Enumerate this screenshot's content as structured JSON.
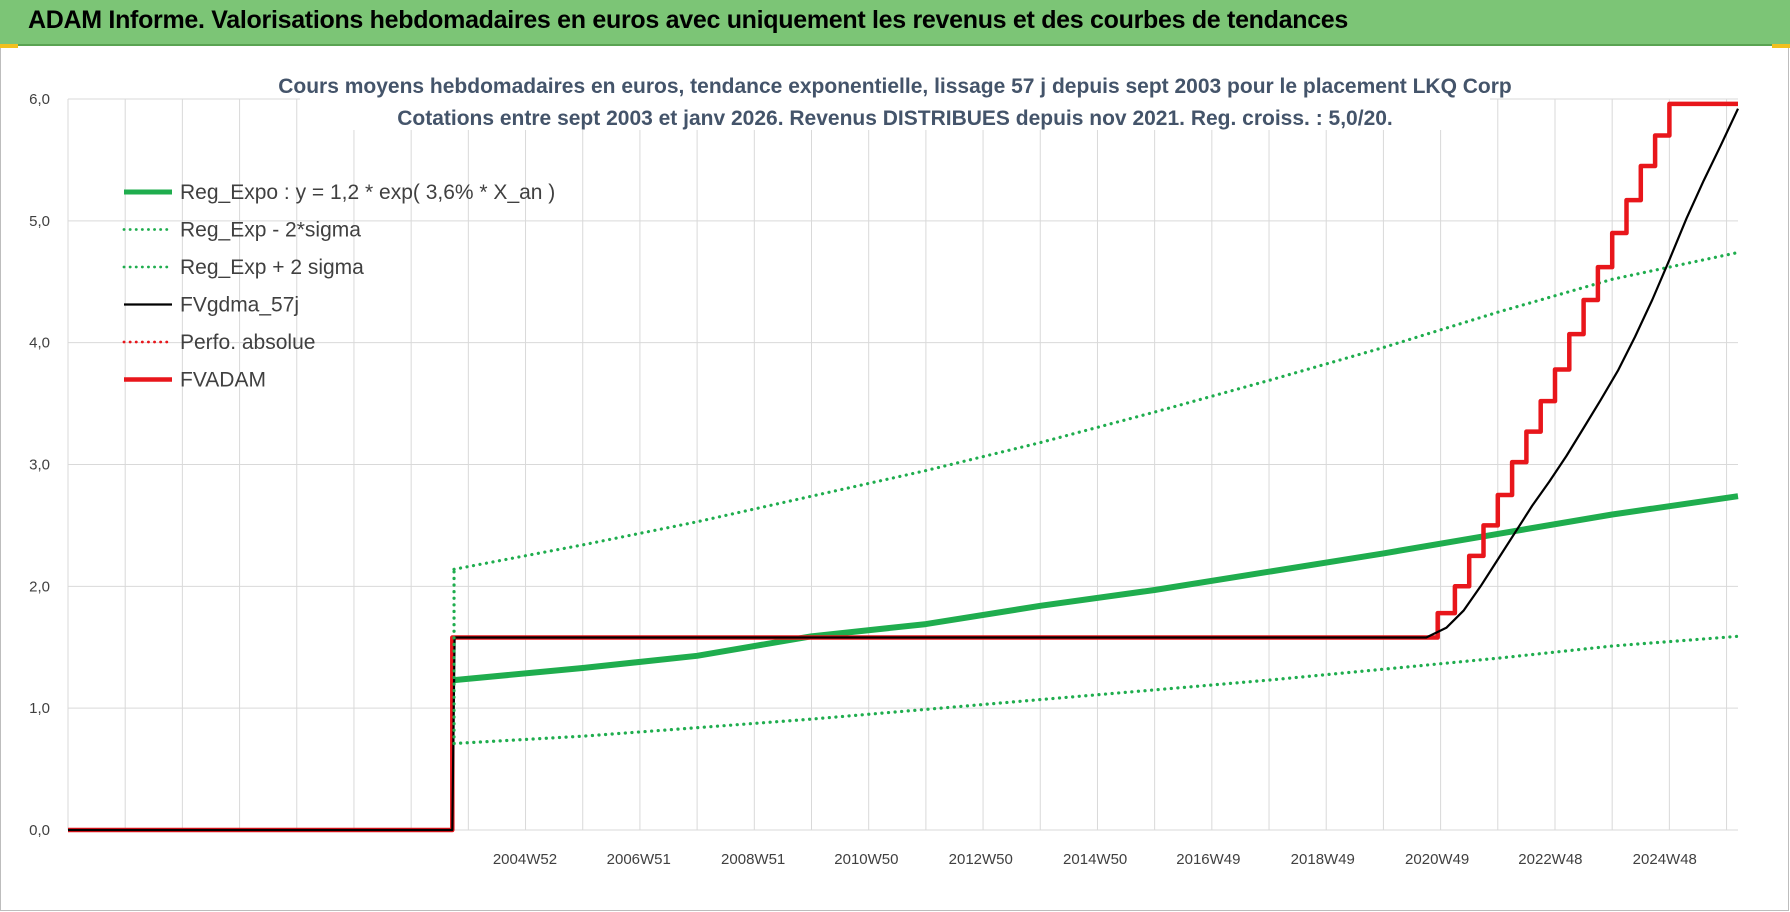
{
  "header": {
    "title": "ADAM Informe. Valorisations hebdomadaires en euros avec uniquement les revenus et des courbes de tendances"
  },
  "chart_data": {
    "type": "line",
    "title": "Cours moyens hebdomadaires en euros, tendance exponentielle, lissage 57 j depuis sept 2003 pour le placement LKQ Corp",
    "subtitle": "Cotations entre sept 2003 et janv 2026. Revenus DISTRIBUES depuis nov 2021. Reg. croiss. : 5,0/20.",
    "ylim": [
      0,
      6
    ],
    "y_ticks": [
      "0,0",
      "1,0",
      "2,0",
      "3,0",
      "4,0",
      "5,0",
      "6,0"
    ],
    "x_range": [
      1997.0,
      2026.2
    ],
    "x_tick_labels": [
      {
        "label": "2004W52",
        "year": 2004.99
      },
      {
        "label": "2006W51",
        "year": 2006.98
      },
      {
        "label": "2008W51",
        "year": 2008.98
      },
      {
        "label": "2010W50",
        "year": 2010.96
      },
      {
        "label": "2012W50",
        "year": 2012.96
      },
      {
        "label": "2014W50",
        "year": 2014.96
      },
      {
        "label": "2016W49",
        "year": 2016.94
      },
      {
        "label": "2018W49",
        "year": 2018.94
      },
      {
        "label": "2020W49",
        "year": 2020.94
      },
      {
        "label": "2022W48",
        "year": 2022.92
      },
      {
        "label": "2024W48",
        "year": 2024.92
      }
    ],
    "grid": true,
    "legend_position": "top-left",
    "series": [
      {
        "name": "Reg_Expo : y = 1,2 * exp( 3,6% *  X_an )",
        "color": "#1fad4e",
        "style": "thick",
        "x": [
          2003.75,
          2006,
          2008,
          2010,
          2012,
          2014,
          2016,
          2018,
          2020,
          2022,
          2024,
          2026.2
        ],
        "values": [
          1.23,
          1.33,
          1.43,
          1.59,
          1.69,
          1.84,
          1.97,
          2.12,
          2.27,
          2.43,
          2.59,
          2.74
        ]
      },
      {
        "name": "Reg_Exp - 2*sigma",
        "color": "#1fad4e",
        "style": "dotted",
        "x": [
          2003.75,
          2006,
          2008,
          2010,
          2012,
          2014,
          2016,
          2018,
          2020,
          2022,
          2024,
          2026.2
        ],
        "values": [
          0.71,
          0.77,
          0.84,
          0.91,
          0.99,
          1.07,
          1.15,
          1.23,
          1.32,
          1.41,
          1.51,
          1.59
        ]
      },
      {
        "name": "Reg_Exp + 2 sigma",
        "color": "#1fad4e",
        "style": "dotted",
        "x": [
          2003.75,
          2006,
          2008,
          2010,
          2012,
          2014,
          2016,
          2018,
          2020,
          2022,
          2024,
          2026.2
        ],
        "values": [
          2.14,
          2.34,
          2.53,
          2.74,
          2.95,
          3.18,
          3.43,
          3.69,
          3.96,
          4.25,
          4.52,
          4.74
        ]
      },
      {
        "name": "FVgdma_57j",
        "color": "#000000",
        "style": "thin",
        "x": [
          1997.0,
          2003.72,
          2003.76,
          2020.75,
          2021.1,
          2021.4,
          2021.7,
          2022.0,
          2022.3,
          2022.6,
          2022.9,
          2023.2,
          2023.5,
          2023.8,
          2024.1,
          2024.4,
          2024.7,
          2025.0,
          2025.3,
          2025.6,
          2025.9,
          2026.2
        ],
        "values": [
          0.0,
          0.0,
          1.58,
          1.58,
          1.66,
          1.8,
          2.0,
          2.22,
          2.44,
          2.66,
          2.86,
          3.07,
          3.3,
          3.53,
          3.77,
          4.05,
          4.35,
          4.68,
          5.02,
          5.33,
          5.62,
          5.92
        ]
      },
      {
        "name": "Perfo. absolue",
        "color": "#e8161b",
        "style": "dotted",
        "x": [],
        "values": []
      },
      {
        "name": "FVADAM",
        "color": "#e8161b",
        "style": "step",
        "x": [
          1997.0,
          2003.72,
          2003.72,
          2020.95,
          2020.95,
          2021.25,
          2021.25,
          2021.5,
          2021.5,
          2021.75,
          2021.75,
          2022.0,
          2022.0,
          2022.25,
          2022.25,
          2022.5,
          2022.5,
          2022.75,
          2022.75,
          2023.0,
          2023.0,
          2023.25,
          2023.25,
          2023.5,
          2023.5,
          2023.75,
          2023.75,
          2024.0,
          2024.0,
          2024.25,
          2024.25,
          2024.5,
          2024.5,
          2024.75,
          2024.75,
          2025.0,
          2025.0,
          2025.25,
          2025.25,
          2025.5,
          2025.5,
          2025.75,
          2025.75,
          2026.0,
          2026.0,
          2026.2
        ],
        "values": [
          0.0,
          0.0,
          1.58,
          1.58,
          1.78,
          1.78,
          2.0,
          2.0,
          2.25,
          2.25,
          2.5,
          2.5,
          2.75,
          2.75,
          3.02,
          3.02,
          3.27,
          3.27,
          3.52,
          3.52,
          3.78,
          3.78,
          4.07,
          4.07,
          4.35,
          4.35,
          4.62,
          4.62,
          4.9,
          4.9,
          5.17,
          5.17,
          5.45,
          5.45,
          5.7,
          5.7,
          5.96,
          5.96,
          5.96,
          5.96,
          5.96,
          5.96,
          5.96,
          5.96,
          5.96,
          5.96
        ]
      }
    ]
  }
}
